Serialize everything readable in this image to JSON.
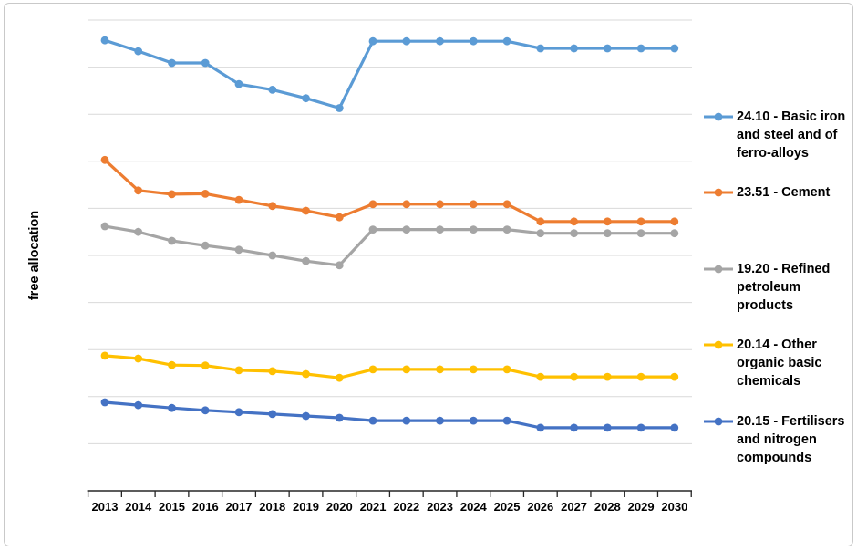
{
  "chart": {
    "y_axis_label": "free allocation"
  },
  "chart_data": {
    "type": "line",
    "title": "",
    "xlabel": "",
    "ylabel": "free allocation",
    "x": [
      "2013",
      "2014",
      "2015",
      "2016",
      "2017",
      "2018",
      "2019",
      "2020",
      "2021",
      "2022",
      "2023",
      "2024",
      "2025",
      "2026",
      "2027",
      "2028",
      "2029",
      "2030"
    ],
    "ylim": [
      0,
      10
    ],
    "y_axis_tick_labels": "none (unlabeled value axis, 10 horizontal gridline divisions; values below are in relative gridline units)",
    "grid": "horizontal",
    "markers": "circle",
    "legend_position": "right",
    "series": [
      {
        "name": "24.10 - Basic iron and steel and of ferro-alloys",
        "label_lines": [
          "24.10 - Basic iron",
          "and steel and of",
          "ferro-alloys"
        ],
        "color": "#5B9BD5",
        "values": [
          9.57,
          9.34,
          9.09,
          9.09,
          8.64,
          8.52,
          8.34,
          8.13,
          9.55,
          9.55,
          9.55,
          9.55,
          9.55,
          9.4,
          9.4,
          9.4,
          9.4,
          9.4
        ]
      },
      {
        "name": "23.51 - Cement",
        "label_lines": [
          "23.51 - Cement"
        ],
        "color": "#ED7D31",
        "values": [
          7.03,
          6.38,
          6.3,
          6.31,
          6.18,
          6.05,
          5.95,
          5.81,
          6.09,
          6.09,
          6.09,
          6.09,
          6.09,
          5.72,
          5.72,
          5.72,
          5.72,
          5.72
        ]
      },
      {
        "name": "19.20 - Refined petroleum products",
        "label_lines": [
          "19.20 - Refined",
          "petroleum",
          "products"
        ],
        "color": "#A5A5A5",
        "values": [
          5.62,
          5.5,
          5.31,
          5.21,
          5.12,
          5.0,
          4.88,
          4.79,
          5.55,
          5.55,
          5.55,
          5.55,
          5.55,
          5.47,
          5.47,
          5.47,
          5.47,
          5.47
        ]
      },
      {
        "name": "20.14 - Other organic basic chemicals",
        "label_lines": [
          "20.14 - Other",
          "organic basic",
          "chemicals"
        ],
        "color": "#FFC000",
        "values": [
          2.87,
          2.81,
          2.67,
          2.66,
          2.56,
          2.54,
          2.48,
          2.4,
          2.58,
          2.58,
          2.58,
          2.58,
          2.58,
          2.42,
          2.42,
          2.42,
          2.42,
          2.42
        ]
      },
      {
        "name": "20.15 - Fertilisers and nitrogen compounds",
        "label_lines": [
          "20.15 - Fertilisers",
          "and nitrogen",
          "compounds"
        ],
        "color": "#4472C4",
        "values": [
          1.88,
          1.82,
          1.76,
          1.71,
          1.67,
          1.63,
          1.59,
          1.55,
          1.49,
          1.49,
          1.49,
          1.49,
          1.49,
          1.34,
          1.34,
          1.34,
          1.34,
          1.34
        ]
      }
    ]
  }
}
